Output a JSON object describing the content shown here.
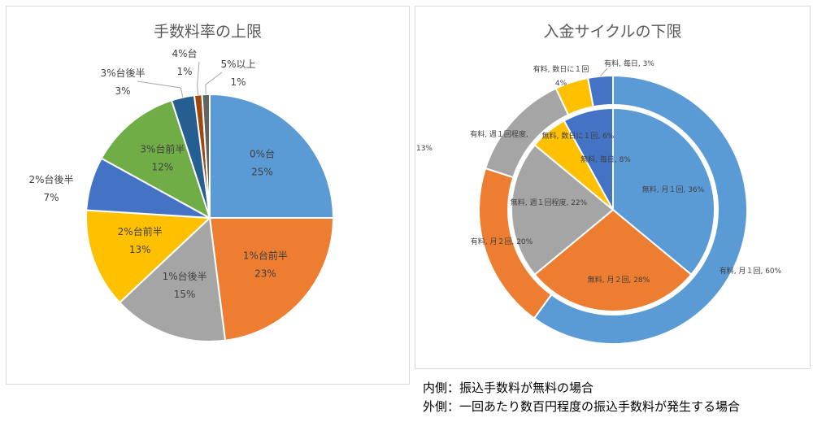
{
  "chart_data": [
    {
      "type": "pie",
      "title": "手数料率の上限",
      "categories": [
        "0%台",
        "1%台前半",
        "1%台後半",
        "2%台前半",
        "2%台後半",
        "3%台前半",
        "3%台後半",
        "4%台",
        "5%以上"
      ],
      "values": [
        25,
        23,
        15,
        13,
        7,
        12,
        3,
        1,
        1
      ],
      "value_labels": [
        "25%",
        "23%",
        "15%",
        "13%",
        "7%",
        "12%",
        "3%",
        "1%",
        "1%"
      ],
      "colors": [
        "#5B9BD5",
        "#ED7D31",
        "#A5A5A5",
        "#FFC000",
        "#4472C4",
        "#70AD47",
        "#255E91",
        "#9E480E",
        "#636363"
      ]
    },
    {
      "type": "pie",
      "title": "入金サイクルの下限",
      "rings": [
        {
          "name": "内側",
          "categories": [
            "無料, 月１回",
            "無料, 月２回",
            "無料, 週１回程度",
            "無料, 数日に１回",
            "無料, 毎日"
          ],
          "values": [
            36,
            28,
            22,
            6,
            8
          ],
          "labels": [
            "無料, 月１回, 36%",
            "無料, 月２回, 28%",
            "無料, 週１回程度, 22%",
            "無料, 数日に１回, 6%",
            "無料, 毎日, 8%"
          ]
        },
        {
          "name": "外側",
          "categories": [
            "有料, 月１回",
            "有料, 月２回",
            "有料, 週１回程度",
            "有料, 数日に１回",
            "有料, 毎日"
          ],
          "values": [
            60,
            20,
            13,
            4,
            3
          ],
          "labels": [
            "有料, 月１回, 60%",
            "有料, 月２回, 20%",
            "有料, 週１回程度, 13%",
            "有料, 数日に１回, 4%",
            "有料, 毎日, 3%"
          ]
        }
      ],
      "colors": [
        "#5B9BD5",
        "#ED7D31",
        "#A5A5A5",
        "#FFC000",
        "#4472C4"
      ]
    }
  ],
  "notes": {
    "inner": "内側：振込手数料が無料の場合",
    "outer": "外側：一回あたり数百円程度の振込手数料が発生する場合"
  }
}
